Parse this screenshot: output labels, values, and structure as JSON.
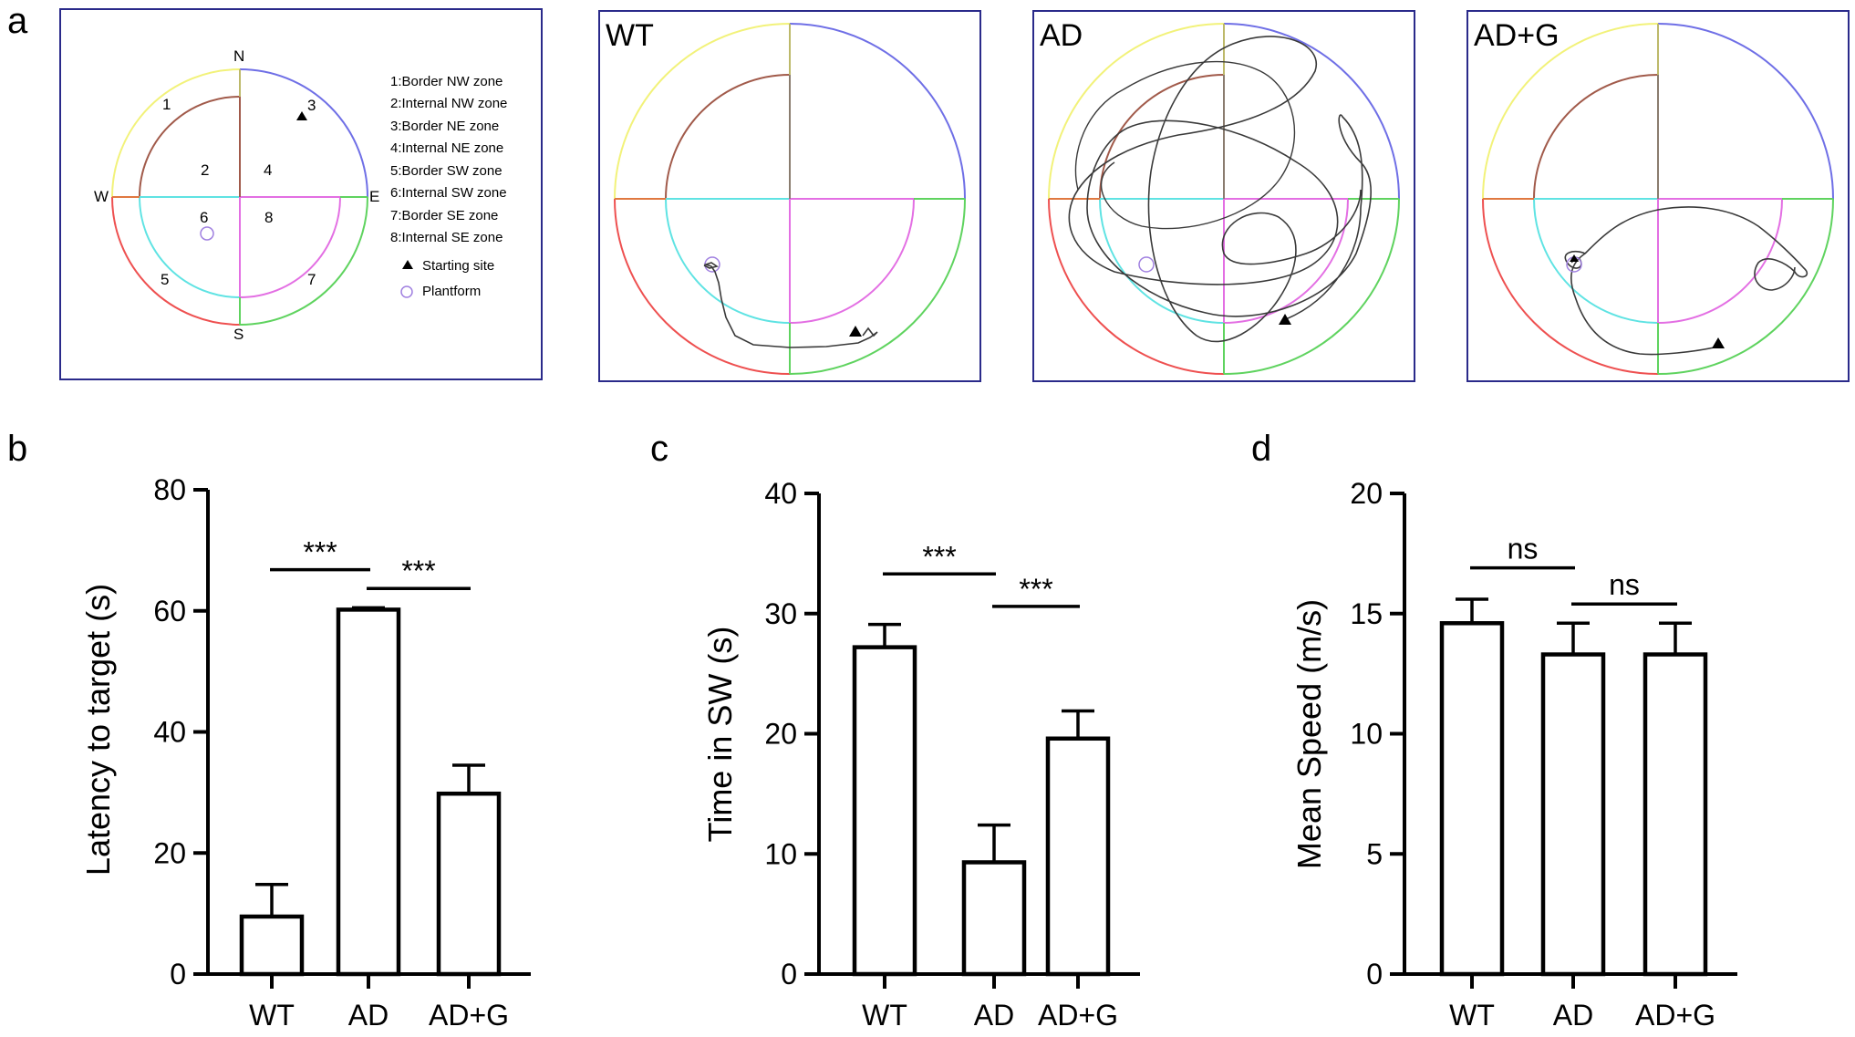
{
  "panel_labels": {
    "a": "a",
    "b": "b",
    "c": "c",
    "d": "d"
  },
  "legend": {
    "compass": {
      "n": "N",
      "e": "E",
      "s": "S",
      "w": "W"
    },
    "zone_numbers": [
      "1",
      "2",
      "3",
      "4",
      "5",
      "6",
      "7",
      "8"
    ],
    "items": [
      "1:Border   NW  zone",
      "2:Internal  NW  zone",
      "3:Border   NE  zone",
      "4:Internal  NE  zone",
      "5:Border   SW  zone",
      "6:Internal  SW  zone",
      "7:Border   SE  zone",
      "8:Internal  SE  zone"
    ],
    "starting_site": "Starting  site",
    "platform": "Plantform"
  },
  "tracks": {
    "wt": "WT",
    "ad": "AD",
    "adg": "AD+G"
  },
  "colors": {
    "nw_border": "#f2f27a",
    "ne_border": "#6f6fe6",
    "sw_border": "#ee5050",
    "se_border": "#5fd35f",
    "nw_internal": "#a15a4a",
    "sw_internal": "#5fe3e3",
    "se_internal": "#e36fe3",
    "w_axis": "#e07840",
    "n_axis": "#bdb96a",
    "ne_axis": "#8a7c6f",
    "platform": "#a080e0",
    "frame": "#2a2a8a",
    "path": "#3a3a3a"
  },
  "chart_data": [
    {
      "type": "bar",
      "panel": "b",
      "categories": [
        "WT",
        "AD",
        "AD+G"
      ],
      "values": [
        9.5,
        60.2,
        29.8
      ],
      "errors": [
        5.3,
        0.3,
        4.7
      ],
      "ylabel": "Latency to target (s)",
      "ylim": [
        0,
        80
      ],
      "yticks": [
        "0",
        "20",
        "40",
        "60",
        "80"
      ],
      "comparisons": [
        {
          "from": 0,
          "to": 1,
          "label": "***",
          "y": 66.8
        },
        {
          "from": 1,
          "to": 2,
          "label": "***",
          "y": 63.7
        }
      ]
    },
    {
      "type": "bar",
      "panel": "c",
      "categories": [
        "WT",
        "AD",
        "AD+G"
      ],
      "values": [
        27.2,
        9.3,
        19.6
      ],
      "errors": [
        1.9,
        3.1,
        2.3
      ],
      "ylabel": "Time in SW (s)",
      "ylim": [
        0,
        40
      ],
      "yticks": [
        "0",
        "10",
        "20",
        "30",
        "40"
      ],
      "comparisons": [
        {
          "from": 0,
          "to": 1,
          "label": "***",
          "y": 33.3
        },
        {
          "from": 1,
          "to": 2,
          "label": "***",
          "y": 30.6
        }
      ]
    },
    {
      "type": "bar",
      "panel": "d",
      "categories": [
        "WT",
        "AD",
        "AD+G"
      ],
      "values": [
        14.6,
        13.3,
        13.3
      ],
      "errors": [
        1.0,
        1.3,
        1.3
      ],
      "ylabel": "Mean Speed (m/s)",
      "ylim": [
        0,
        20
      ],
      "yticks": [
        "0",
        "5",
        "10",
        "15",
        "20"
      ],
      "comparisons": [
        {
          "from": 0,
          "to": 1,
          "label": "ns",
          "y": 16.9
        },
        {
          "from": 1,
          "to": 2,
          "label": "ns",
          "y": 15.4
        }
      ]
    }
  ]
}
